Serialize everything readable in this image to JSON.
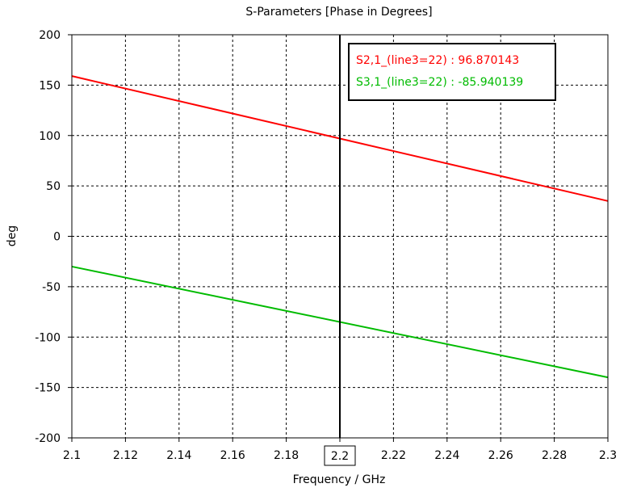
{
  "chart_data": {
    "type": "line",
    "title": "S-Parameters [Phase in Degrees]",
    "xlabel": "Frequency / GHz",
    "ylabel": "deg",
    "xlim": [
      2.1,
      2.3
    ],
    "ylim": [
      -200,
      200
    ],
    "x_ticks": [
      "2.1",
      "2.12",
      "2.14",
      "2.16",
      "2.18",
      "2.2",
      "2.22",
      "2.24",
      "2.26",
      "2.28",
      "2.3"
    ],
    "y_ticks": [
      "200",
      "150",
      "100",
      "50",
      "0",
      "-50",
      "-100",
      "-150",
      "-200"
    ],
    "grid": true,
    "legend_position": "top-right",
    "marker": {
      "x": 2.2,
      "label": "2.2"
    },
    "series": [
      {
        "name": "S2,1_(line3=22)",
        "marker_value": "96.870143",
        "color": "#ff0000",
        "x": [
          2.1,
          2.3
        ],
        "y": [
          159,
          35
        ]
      },
      {
        "name": "S3,1_(line3=22)",
        "marker_value": "-85.940139",
        "color": "#00bb00",
        "x": [
          2.1,
          2.3
        ],
        "y": [
          -30,
          -140
        ]
      }
    ]
  }
}
